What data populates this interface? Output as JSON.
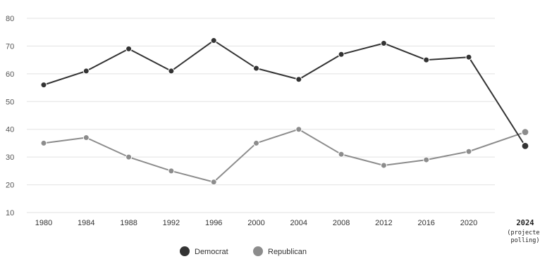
{
  "chart_data": {
    "type": "line",
    "title": "",
    "xlabel": "",
    "ylabel": "",
    "categories": [
      "1980",
      "1984",
      "1988",
      "1992",
      "1996",
      "2000",
      "2004",
      "2008",
      "2012",
      "2016",
      "2020",
      "2024"
    ],
    "last_category_note": "(projected polling)",
    "ylim": [
      10,
      80
    ],
    "yticks": [
      10,
      20,
      30,
      40,
      50,
      60,
      70,
      80
    ],
    "grid": true,
    "legend_position": "bottom",
    "series": [
      {
        "name": "Democrat",
        "color": "#333333",
        "values": [
          56,
          61,
          69,
          61,
          72,
          62,
          58,
          67,
          71,
          65,
          66,
          34
        ]
      },
      {
        "name": "Republican",
        "color": "#8c8c8c",
        "values": [
          35,
          37,
          30,
          25,
          21,
          35,
          40,
          31,
          27,
          29,
          32,
          39
        ]
      }
    ]
  }
}
